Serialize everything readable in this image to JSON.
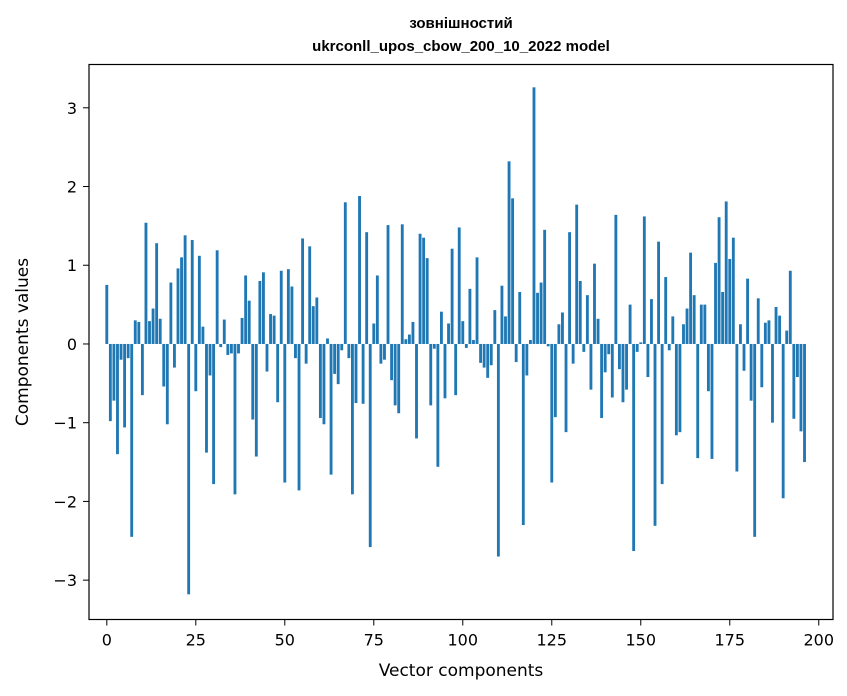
{
  "chart_data": {
    "type": "bar",
    "title": "зовнішностий",
    "subtitle": "ukrconll_upos_cbow_200_10_2022 model",
    "xlabel": "Vector components",
    "ylabel": "Components values",
    "xlim": [
      -5,
      204
    ],
    "ylim": [
      -3.5,
      3.55
    ],
    "x_ticks": [
      0,
      25,
      50,
      75,
      100,
      125,
      150,
      175,
      200
    ],
    "x_tick_labels": [
      "0",
      "25",
      "50",
      "75",
      "100",
      "125",
      "150",
      "175",
      "200"
    ],
    "y_ticks": [
      -3,
      -2,
      -1,
      0,
      1,
      2,
      3
    ],
    "y_tick_labels": [
      "−3",
      "−2",
      "−1",
      "0",
      "1",
      "2",
      "3"
    ],
    "grid": false,
    "bar_color": "#1f77b4",
    "values": [
      0.75,
      -0.98,
      -0.72,
      -1.4,
      -0.2,
      -1.06,
      -0.18,
      -2.45,
      0.3,
      0.28,
      -0.65,
      1.54,
      0.29,
      0.45,
      1.28,
      0.32,
      -0.54,
      -1.02,
      0.78,
      -0.3,
      0.96,
      1.1,
      1.38,
      -3.18,
      1.32,
      -0.6,
      1.12,
      0.22,
      -1.38,
      -0.4,
      -1.78,
      1.19,
      -0.04,
      0.31,
      -0.14,
      -0.12,
      -1.91,
      -0.12,
      0.33,
      0.87,
      0.55,
      -0.96,
      -1.43,
      0.8,
      0.91,
      -0.35,
      0.38,
      0.36,
      -0.74,
      0.93,
      -1.76,
      0.95,
      0.73,
      -0.18,
      -1.86,
      1.34,
      -0.25,
      1.24,
      0.48,
      0.59,
      -0.94,
      -1.02,
      0.07,
      -1.66,
      -0.38,
      -0.51,
      -0.08,
      1.8,
      -0.18,
      -1.91,
      -0.75,
      1.88,
      -0.76,
      1.42,
      -2.58,
      0.26,
      0.87,
      -0.25,
      -0.2,
      1.51,
      -0.46,
      -0.78,
      -0.88,
      1.52,
      0.06,
      0.12,
      0.28,
      -1.2,
      1.4,
      1.35,
      1.09,
      -0.78,
      -0.06,
      -1.56,
      0.41,
      -0.69,
      0.26,
      1.21,
      -0.65,
      1.48,
      0.29,
      -0.05,
      0.7,
      0.05,
      1.1,
      -0.24,
      -0.3,
      -0.43,
      -0.27,
      0.43,
      -2.7,
      0.74,
      0.35,
      2.32,
      1.85,
      -0.23,
      0.66,
      -2.3,
      -0.4,
      0.05,
      3.26,
      0.65,
      0.78,
      1.45,
      -0.03,
      -1.76,
      -0.93,
      0.25,
      0.4,
      -1.12,
      1.42,
      -0.25,
      1.77,
      0.8,
      -0.1,
      0.62,
      -0.58,
      1.02,
      0.32,
      -0.94,
      -0.36,
      -0.13,
      -0.68,
      1.64,
      -0.32,
      -0.74,
      -0.58,
      0.5,
      -2.63,
      -0.1,
      0.02,
      1.62,
      -0.42,
      0.57,
      -2.31,
      1.3,
      -1.78,
      0.85,
      -0.08,
      0.35,
      -1.16,
      -1.12,
      0.25,
      0.45,
      1.16,
      0.62,
      -1.45,
      0.5,
      0.5,
      -0.6,
      -1.46,
      1.03,
      1.61,
      0.66,
      1.81,
      1.08,
      1.35,
      -1.62,
      0.25,
      -0.34,
      0.83,
      -0.72,
      -2.45,
      0.58,
      -0.55,
      0.27,
      0.3,
      -1.0,
      0.47,
      0.36,
      -1.96,
      0.17,
      0.93,
      -0.95,
      -0.42,
      -1.11,
      -1.5
    ]
  }
}
